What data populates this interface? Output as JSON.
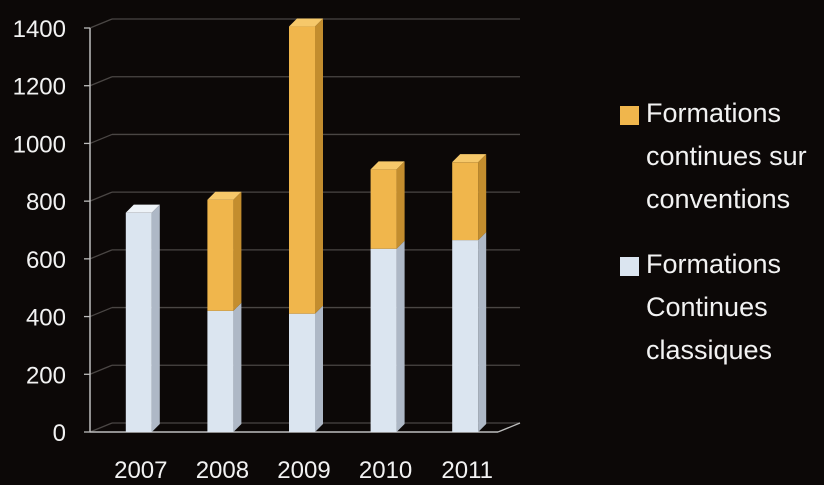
{
  "colors": {
    "background": "#0c0807",
    "text": "#f2f2f2",
    "classic": "#dbe5f0",
    "classic_side": "#aeb8c6",
    "classic_top": "#eef3f8",
    "convention": "#f0b64c",
    "convention_side": "#c38d2e",
    "convention_top": "#f6c86a",
    "grid": "#4a4644"
  },
  "chart_data": {
    "type": "bar",
    "stacked": true,
    "three_d": true,
    "categories": [
      "2007",
      "2008",
      "2009",
      "2010",
      "2011"
    ],
    "series": [
      {
        "name": "Formations Continues classiques",
        "values": [
          760,
          420,
          410,
          635,
          665
        ]
      },
      {
        "name": "Formations continues sur conventions",
        "values": [
          0,
          385,
          995,
          275,
          270
        ]
      }
    ],
    "ylim": [
      0,
      1400
    ],
    "yticks": [
      "0",
      "200",
      "400",
      "600",
      "800",
      "1000",
      "1200",
      "1400"
    ],
    "grid": true,
    "legend_position": "right"
  },
  "legend": {
    "items": [
      {
        "label": "Formations continues sur conventions",
        "color": "#f0b64c"
      },
      {
        "label": "Formations Continues classiques",
        "color": "#dbe5f0"
      }
    ]
  }
}
